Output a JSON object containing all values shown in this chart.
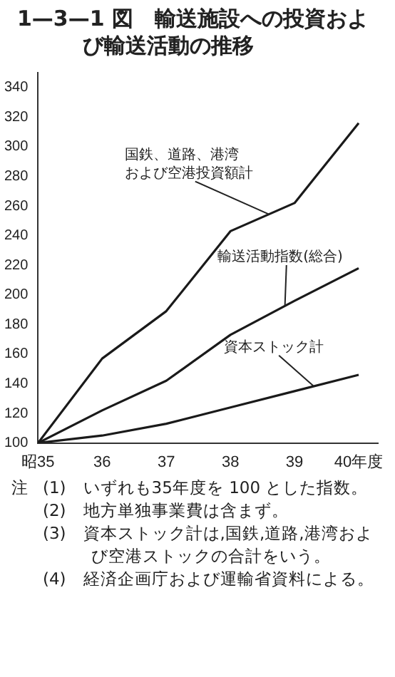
{
  "chart_data": {
    "type": "line",
    "title": "1—3—1 図　輸送施設への投資および輸送活動の推移",
    "x": [
      35,
      36,
      37,
      38,
      39,
      40
    ],
    "series": [
      {
        "name": "国鉄、道路、港湾および空港投資額計",
        "color": "#1a1a1a",
        "values": [
          100,
          157,
          189,
          243,
          262,
          316
        ]
      },
      {
        "name": "輸送活動指数(総合)",
        "color": "#1a1a1a",
        "values": [
          100,
          122,
          142,
          173,
          196,
          218
        ]
      },
      {
        "name": "資本ストック計",
        "color": "#1a1a1a",
        "values": [
          100,
          105,
          113,
          124,
          135,
          146
        ]
      }
    ],
    "xlim": [
      35,
      40.3
    ],
    "xticks": [
      {
        "value": 35,
        "label": "昭35"
      },
      36,
      37,
      38,
      39,
      {
        "value": 40,
        "label": "40年度"
      }
    ],
    "ylim": [
      100,
      350
    ],
    "yticks": [
      100,
      120,
      140,
      160,
      180,
      200,
      220,
      240,
      260,
      280,
      300,
      320,
      340
    ],
    "grid": false,
    "legend": false,
    "marker": "none",
    "line_style": "solid",
    "annotations": [
      "注",
      "(1)　いずれも35年度を 100 とした指数。",
      "(2)　地方単独事業費は含まず。",
      "(3)　資本ストック計は,国鉄,道路,港湾および空港ストックの合計をいう。",
      "(4)　経済企画庁および運輸省資料による。"
    ]
  }
}
